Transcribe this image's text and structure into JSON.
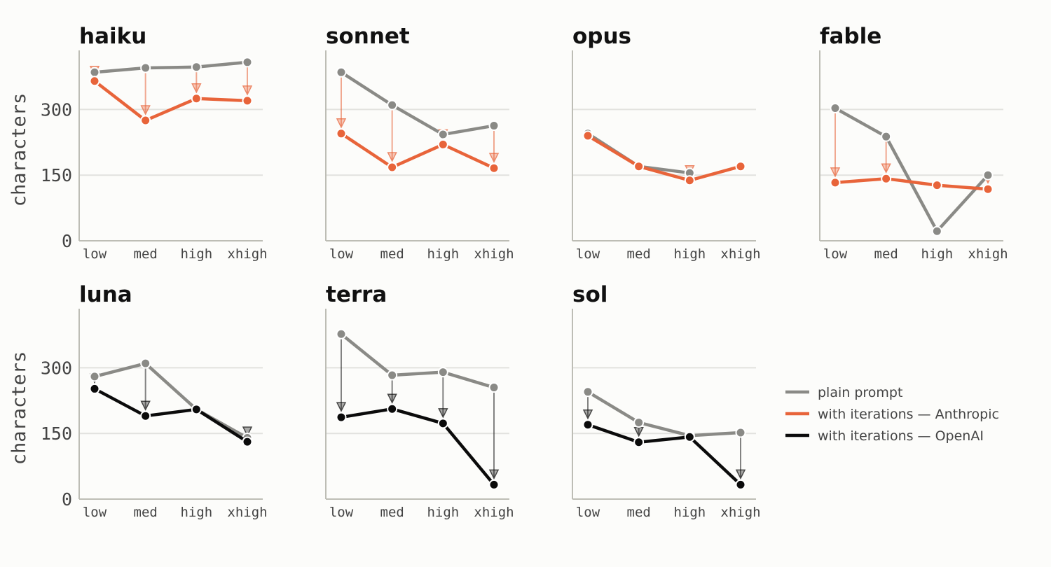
{
  "colors": {
    "background": "#fcfcfa",
    "plain": "#8a8a86",
    "anthropic": "#e8643a",
    "openai": "#0b0b0b",
    "grid": "#e2e2de",
    "axis": "#bdbdb5"
  },
  "chart_data": {
    "type": "line",
    "ylabel": "characters",
    "categories": [
      "low",
      "med",
      "high",
      "xhigh"
    ],
    "yticks": [
      0,
      150,
      300
    ],
    "ylim": [
      0,
      435
    ],
    "grid": "horizontal",
    "legend": {
      "placement": "right",
      "entries": [
        {
          "label": "plain prompt",
          "color": "#8a8a86"
        },
        {
          "label": "with iterations — Anthropic",
          "color": "#e8643a"
        },
        {
          "label": "with iterations — OpenAI",
          "color": "#0b0b0b"
        }
      ]
    },
    "panels": [
      {
        "title": "haiku",
        "provider": "anthropic",
        "plain": [
          385,
          395,
          397,
          408
        ],
        "iter": [
          365,
          275,
          325,
          320
        ]
      },
      {
        "title": "sonnet",
        "provider": "anthropic",
        "plain": [
          385,
          310,
          243,
          263
        ],
        "iter": [
          245,
          168,
          220,
          166
        ]
      },
      {
        "title": "opus",
        "provider": "anthropic",
        "plain": [
          245,
          170,
          155,
          null
        ],
        "iter": [
          240,
          170,
          138,
          170
        ]
      },
      {
        "title": "fable",
        "provider": "anthropic",
        "plain": [
          303,
          238,
          22,
          150
        ],
        "iter": [
          133,
          142,
          127,
          118
        ]
      },
      {
        "title": "luna",
        "provider": "openai",
        "plain": [
          280,
          310,
          205,
          140
        ],
        "iter": [
          252,
          190,
          205,
          131
        ]
      },
      {
        "title": "terra",
        "provider": "openai",
        "plain": [
          377,
          283,
          290,
          255
        ],
        "iter": [
          187,
          206,
          173,
          33
        ]
      },
      {
        "title": "sol",
        "provider": "openai",
        "plain": [
          245,
          175,
          145,
          152
        ],
        "iter": [
          170,
          130,
          142,
          33
        ]
      }
    ]
  }
}
